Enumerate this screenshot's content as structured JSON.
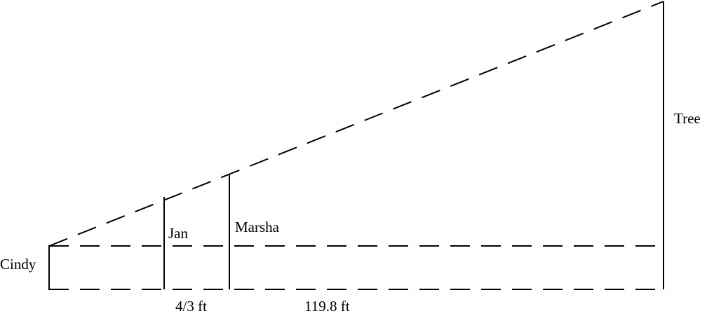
{
  "labels": {
    "cindy": "Cindy",
    "jan": "Jan",
    "marsha": "Marsha",
    "tree": "Tree",
    "gap_jan_marsha": "4/3 ft",
    "gap_marsha_tree": "119.8 ft"
  },
  "colors": {
    "stroke": "#000000",
    "background": "#ffffff"
  }
}
